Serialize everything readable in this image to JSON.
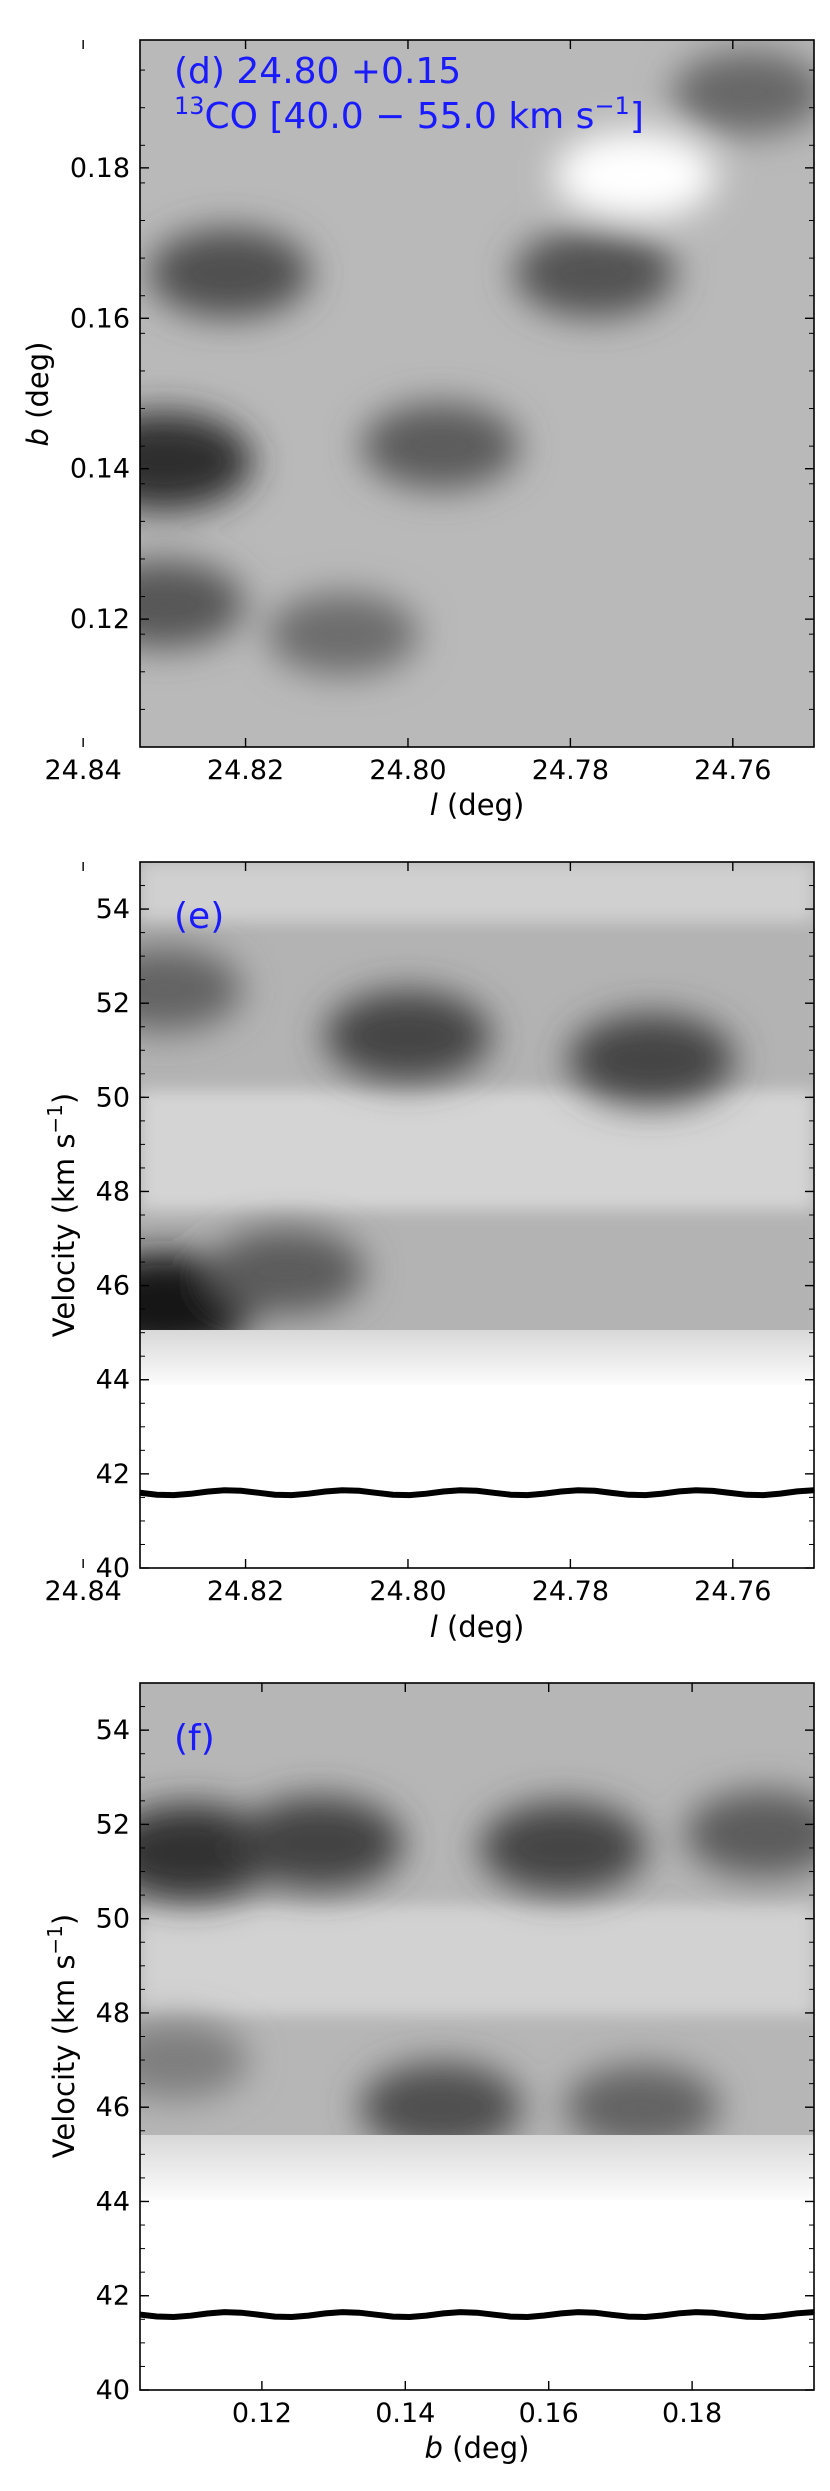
{
  "chart_data": [
    {
      "type": "heatmap",
      "panel_label": "(d) 24.80 +0.15",
      "subtitle_prefix": "13",
      "subtitle_rest": "CO [40.0 − 55.0 km s",
      "subtitle_sup": "−1",
      "subtitle_close": "]",
      "xlabel_italic": "l",
      "xlabel_rest": " (deg)",
      "ylabel_italic": "b",
      "ylabel_rest": " (deg)",
      "xlim": [
        24.833,
        24.75
      ],
      "ylim": [
        0.103,
        0.197
      ],
      "xticks": [
        "24.84",
        "24.82",
        "24.80",
        "24.78",
        "24.76"
      ],
      "xtick_values": [
        24.84,
        24.82,
        24.8,
        24.78,
        24.76
      ],
      "yticks": [
        "0.12",
        "0.14",
        "0.16",
        "0.18"
      ],
      "ytick_values": [
        0.12,
        0.14,
        0.16,
        0.18
      ],
      "features": [
        {
          "x": 24.83,
          "y": 0.141,
          "level": 0.82
        },
        {
          "x": 24.822,
          "y": 0.166,
          "level": 0.62
        },
        {
          "x": 24.83,
          "y": 0.122,
          "level": 0.58
        },
        {
          "x": 24.796,
          "y": 0.143,
          "level": 0.55
        },
        {
          "x": 24.777,
          "y": 0.166,
          "level": 0.6
        },
        {
          "x": 24.808,
          "y": 0.118,
          "level": 0.45
        },
        {
          "x": 24.758,
          "y": 0.19,
          "level": 0.48
        },
        {
          "x": 24.772,
          "y": 0.179,
          "level": -0.6
        }
      ]
    },
    {
      "type": "heatmap",
      "panel_label": "(e)",
      "xlabel_italic": "l",
      "xlabel_rest": " (deg)",
      "ylabel_pre": "Velocity (km s",
      "ylabel_sup": "−1",
      "ylabel_post": ")",
      "xlim": [
        24.833,
        24.75
      ],
      "ylim": [
        40,
        55
      ],
      "xticks": [
        "24.84",
        "24.82",
        "24.80",
        "24.78",
        "24.76"
      ],
      "xtick_values": [
        24.84,
        24.82,
        24.8,
        24.78,
        24.76
      ],
      "yticks": [
        "40",
        "42",
        "44",
        "46",
        "48",
        "50",
        "52",
        "54"
      ],
      "ytick_values": [
        40,
        42,
        44,
        46,
        48,
        50,
        52,
        54
      ],
      "features": [
        {
          "x": 24.83,
          "y": 45.6,
          "level": 0.95
        },
        {
          "x": 24.815,
          "y": 46.3,
          "level": 0.55
        },
        {
          "x": 24.8,
          "y": 51.3,
          "level": 0.68
        },
        {
          "x": 24.77,
          "y": 50.8,
          "level": 0.68
        },
        {
          "x": 24.83,
          "y": 52.3,
          "level": 0.5
        }
      ],
      "cutoff_velocity": 41.6
    },
    {
      "type": "heatmap",
      "panel_label": "(f)",
      "xlabel_italic": "b",
      "xlabel_rest": " (deg)",
      "ylabel_pre": "Velocity (km s",
      "ylabel_sup": "−1",
      "ylabel_post": ")",
      "xlim": [
        0.103,
        0.197
      ],
      "ylim": [
        40,
        55
      ],
      "xticks": [
        "0.12",
        "0.14",
        "0.16",
        "0.18"
      ],
      "xtick_values": [
        0.12,
        0.14,
        0.16,
        0.18
      ],
      "yticks": [
        "40",
        "42",
        "44",
        "46",
        "48",
        "50",
        "52",
        "54"
      ],
      "ytick_values": [
        40,
        42,
        44,
        46,
        48,
        50,
        52,
        54
      ],
      "features": [
        {
          "x": 0.11,
          "y": 51.4,
          "level": 0.8
        },
        {
          "x": 0.128,
          "y": 51.6,
          "level": 0.7
        },
        {
          "x": 0.162,
          "y": 51.5,
          "level": 0.68
        },
        {
          "x": 0.19,
          "y": 51.8,
          "level": 0.55
        },
        {
          "x": 0.145,
          "y": 46.0,
          "level": 0.62
        },
        {
          "x": 0.173,
          "y": 46.0,
          "level": 0.5
        },
        {
          "x": 0.108,
          "y": 47.0,
          "level": 0.35
        }
      ],
      "cutoff_velocity": 41.6
    }
  ]
}
